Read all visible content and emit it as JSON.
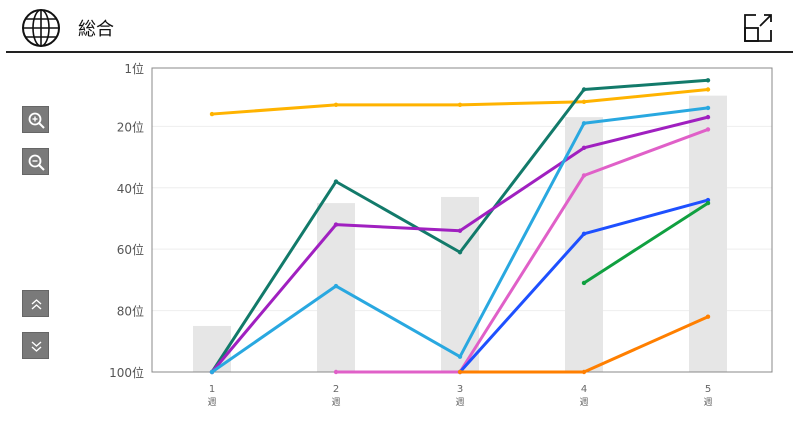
{
  "header": {
    "title": "総合",
    "globe_icon": "globe-icon",
    "expand_icon": "open-external-icon"
  },
  "controls": {
    "zoom_in": "zoom-in-icon",
    "zoom_out": "zoom-out-icon",
    "scroll_up": "double-chevron-up-icon",
    "scroll_down": "double-chevron-down-icon"
  },
  "chart_data": {
    "type": "line",
    "title": "",
    "x": [
      "1",
      "2",
      "3",
      "4",
      "5"
    ],
    "x_unit": "週",
    "ylim": [
      1,
      100
    ],
    "y_inverted": true,
    "y_ticks": [
      1,
      20,
      40,
      60,
      80,
      100
    ],
    "y_tick_labels": [
      "1位",
      "20位",
      "40位",
      "60位",
      "80位",
      "100位"
    ],
    "grid": true,
    "bars": {
      "color": "#e6e6e6",
      "values": [
        85,
        45,
        43,
        17,
        10
      ]
    },
    "series": [
      {
        "color": "#FFB300",
        "values": [
          16,
          13,
          13,
          12,
          8
        ]
      },
      {
        "color": "#127A6A",
        "values": [
          100,
          38,
          61,
          8,
          5
        ]
      },
      {
        "color": "#A020C0",
        "values": [
          100,
          52,
          54,
          27,
          17
        ]
      },
      {
        "color": "#29A8E0",
        "values": [
          100,
          72,
          95,
          19,
          14
        ]
      },
      {
        "color": "#E060C8",
        "values": [
          null,
          100,
          100,
          36,
          21
        ]
      },
      {
        "color": "#1E50FF",
        "values": [
          null,
          null,
          100,
          55,
          44
        ]
      },
      {
        "color": "#10A040",
        "values": [
          null,
          null,
          null,
          71,
          45
        ]
      },
      {
        "color": "#FF7F00",
        "values": [
          null,
          null,
          100,
          100,
          82
        ]
      }
    ]
  }
}
